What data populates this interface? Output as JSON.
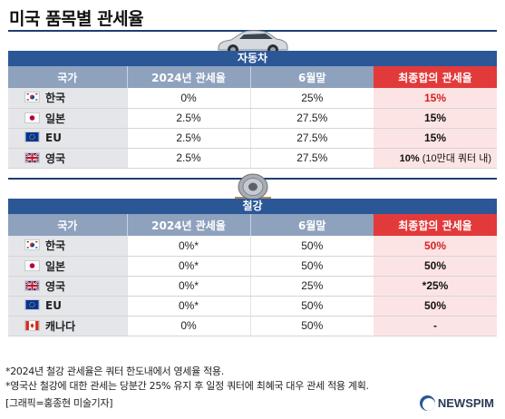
{
  "title": "미국 품목별 관세율",
  "sections": {
    "car": {
      "title": "자동차",
      "headers": [
        "국가",
        "2024년 관세율",
        "6월말",
        "최종합의 관세율"
      ],
      "rows": [
        {
          "country": "한국",
          "flag": "korea-flag-icon",
          "rate2024": "0%",
          "june": "25%",
          "final": "15%",
          "final_color": "red"
        },
        {
          "country": "일본",
          "flag": "japan-flag-icon",
          "rate2024": "2.5%",
          "june": "27.5%",
          "final": "15%",
          "final_color": "black"
        },
        {
          "country": "EU",
          "flag": "eu-flag-icon",
          "rate2024": "2.5%",
          "june": "27.5%",
          "final": "15%",
          "final_color": "black"
        },
        {
          "country": "영국",
          "flag": "uk-flag-icon",
          "rate2024": "2.5%",
          "june": "27.5%",
          "final": "10%",
          "final_note": "(10만대 쿼터 내)",
          "final_color": "black"
        }
      ]
    },
    "steel": {
      "title": "철강",
      "headers": [
        "국가",
        "2024년 관세율",
        "6월말",
        "최종합의 관세율"
      ],
      "rows": [
        {
          "country": "한국",
          "flag": "korea-flag-icon",
          "rate2024": "0%*",
          "june": "50%",
          "final": "50%",
          "final_color": "red"
        },
        {
          "country": "일본",
          "flag": "japan-flag-icon",
          "rate2024": "0%*",
          "june": "50%",
          "final": "50%",
          "final_color": "black"
        },
        {
          "country": "영국",
          "flag": "uk-flag-icon",
          "rate2024": "0%*",
          "june": "25%",
          "final": "*25%",
          "final_color": "black"
        },
        {
          "country": "EU",
          "flag": "eu-flag-icon",
          "rate2024": "0%*",
          "june": "50%",
          "final": "50%",
          "final_color": "black"
        },
        {
          "country": "캐나다",
          "flag": "canada-flag-icon",
          "rate2024": "0%",
          "june": "50%",
          "final": "-",
          "final_color": "black"
        }
      ]
    }
  },
  "notes": [
    "*2024년 철강 관세율은 쿼터 한도내에서 영세율 적용.",
    "*영국산 철강에 대한 관세는 당분간 25% 유지 후 일정 쿼터에 최혜국 대우 관세 적용 계획."
  ],
  "credit": "[그래픽=홍종현 미술기자]",
  "logo": "NEWSPIM",
  "colors": {
    "banner": "#2b5797",
    "header": "#8ea1bd",
    "final_header": "#e23a3a",
    "final_cell": "#fde4e4",
    "country_cell": "#e4e6ea",
    "highlight_red": "#d62020"
  }
}
